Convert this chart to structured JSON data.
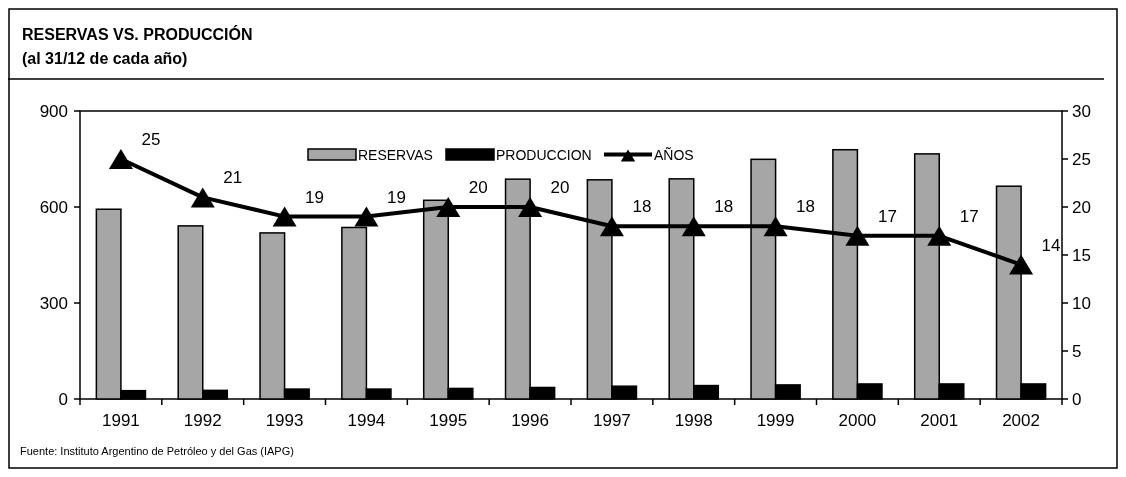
{
  "chart_data": {
    "type": "bar",
    "title": "RESERVAS VS. PRODUCCIÓN",
    "subtitle": "(al 31/12 de cada año)",
    "categories": [
      "1991",
      "1992",
      "1993",
      "1994",
      "1995",
      "1996",
      "1997",
      "1998",
      "1999",
      "2000",
      "2001",
      "2002"
    ],
    "series": [
      {
        "name": "RESERVAS",
        "color": "#a6a6a6",
        "values": [
          593,
          541,
          519,
          536,
          621,
          687,
          685,
          688,
          749,
          779,
          766,
          665
        ]
      },
      {
        "name": "PRODUCCION",
        "color": "#000000",
        "values": [
          26,
          27,
          31,
          31,
          33,
          36,
          40,
          42,
          44,
          47,
          47,
          47
        ]
      },
      {
        "name": "AÑOS",
        "type": "line",
        "axis": "y2",
        "color": "#000000",
        "marker": "triangle",
        "values": [
          25,
          21,
          19,
          19,
          20,
          20,
          18,
          18,
          18,
          17,
          17,
          14
        ],
        "value_labels": [
          "25",
          "21",
          "19",
          "19",
          "20",
          "20",
          "18",
          "18",
          "18",
          "17",
          "17",
          "14"
        ]
      }
    ],
    "ylim": [
      0,
      900
    ],
    "yticks": [
      0,
      300,
      600,
      900
    ],
    "y2lim": [
      0,
      30
    ],
    "y2ticks": [
      0,
      5,
      10,
      15,
      20,
      25,
      30
    ],
    "legend": "top",
    "grid": false,
    "annotations": [
      "Fuente: Instituto Argentino de Petróleo y del Gas (IAPG)"
    ]
  }
}
